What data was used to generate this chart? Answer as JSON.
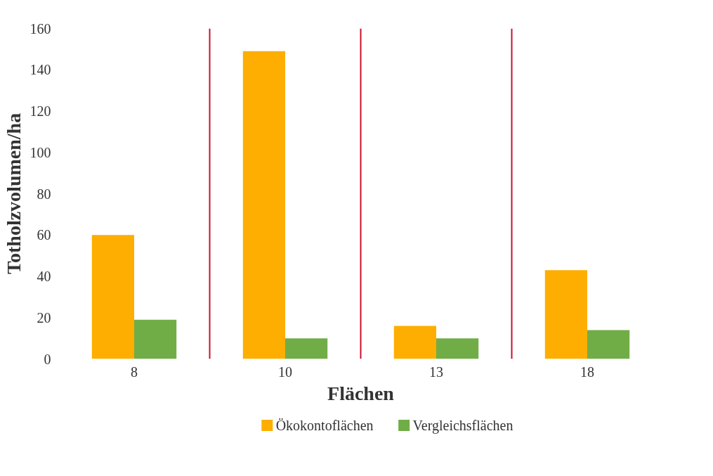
{
  "chart_data": {
    "type": "bar",
    "xlabel": "Flächen",
    "ylabel": "Totholzvolumen/ha",
    "categories": [
      "8",
      "10",
      "13",
      "18"
    ],
    "series": [
      {
        "name": "Ökokontoflächen",
        "color": "#fdae00",
        "values": [
          60,
          149,
          16,
          43
        ]
      },
      {
        "name": "Vergleichsflächen",
        "color": "#70ad47",
        "values": [
          19,
          10,
          10,
          14
        ]
      }
    ],
    "ylim": [
      0,
      160
    ],
    "yticks": [
      0,
      20,
      40,
      60,
      80,
      100,
      120,
      140,
      160
    ],
    "grid": false,
    "legend": "bottom"
  }
}
